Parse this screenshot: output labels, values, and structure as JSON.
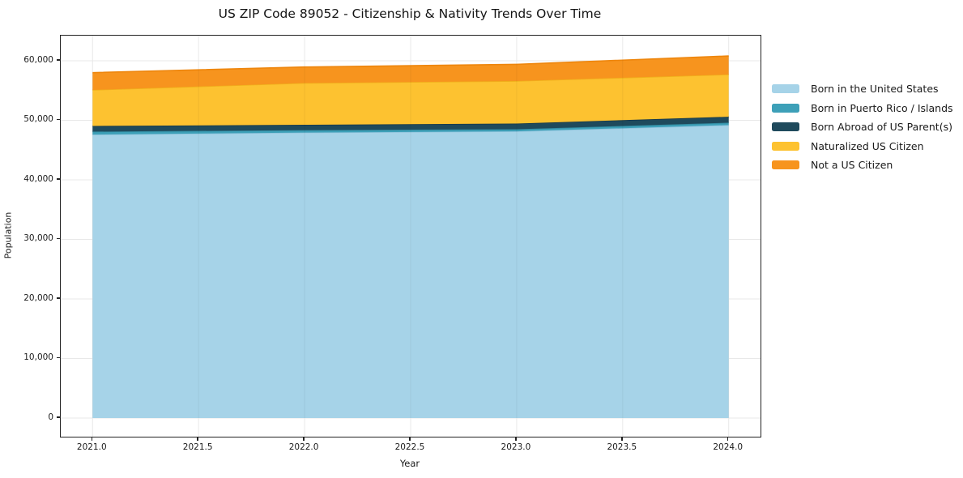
{
  "chart_data": {
    "type": "area",
    "stacked": true,
    "title": "US ZIP Code 89052 - Citizenship & Nativity Trends Over Time",
    "xlabel": "Year",
    "ylabel": "Population",
    "x": [
      2021,
      2022,
      2023,
      2024
    ],
    "series": [
      {
        "name": "Born in the United States",
        "color": "#A6D3E8",
        "edge": "#8FC3DC",
        "values": [
          47600,
          47950,
          48150,
          49200
        ]
      },
      {
        "name": "Born in Puerto Rico / Islands",
        "color": "#3DA0B8",
        "edge": "#31879C",
        "values": [
          500,
          400,
          350,
          400
        ]
      },
      {
        "name": "Born Abroad of US Parent(s)",
        "color": "#1F4A5C",
        "edge": "#16384A",
        "values": [
          950,
          900,
          950,
          1000
        ]
      },
      {
        "name": "Naturalized US Citizen",
        "color": "#FDC230",
        "edge": "#F0B01B",
        "values": [
          6050,
          7000,
          7150,
          7100
        ]
      },
      {
        "name": "Not a US Citizen",
        "color": "#F7941E",
        "edge": "#EE860D",
        "values": [
          2900,
          2700,
          2800,
          3100
        ]
      }
    ],
    "xticks": [
      2021,
      2021.5,
      2022,
      2022.5,
      2023,
      2023.5,
      2024
    ],
    "xtick_labels": [
      "2021.0",
      "2021.5",
      "2022.0",
      "2022.5",
      "2023.0",
      "2023.5",
      "2024.0"
    ],
    "yticks": [
      0,
      10000,
      20000,
      30000,
      40000,
      50000,
      60000
    ],
    "ytick_labels": [
      "0",
      "10,000",
      "20,000",
      "30,000",
      "40,000",
      "50,000",
      "60,000"
    ],
    "xlim": [
      2020.85,
      2024.15
    ],
    "ylim": [
      -3130,
      64215
    ],
    "grid": true,
    "legend_position": "right-outside"
  },
  "colors": {
    "background": "#ffffff",
    "grid": "#e8e8e8",
    "spine": "#222222",
    "text": "#1a1a1a"
  }
}
